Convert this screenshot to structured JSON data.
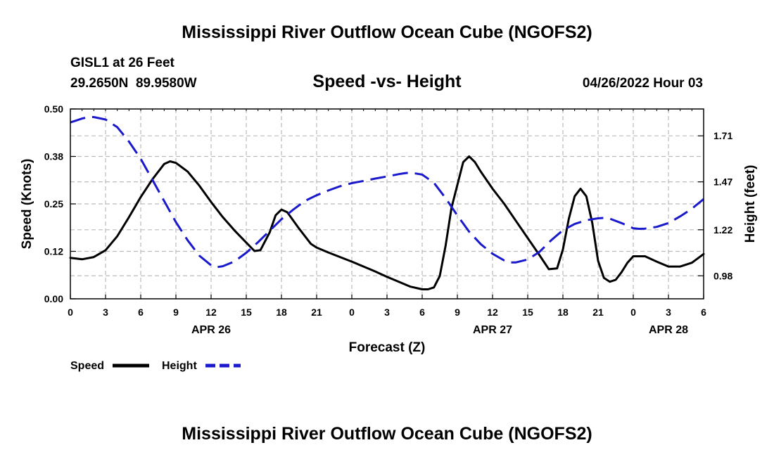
{
  "header": {
    "title": "Mississippi River Outflow Ocean Cube (NGOFS2)",
    "station": "GISL1 at 26 Feet",
    "coords": "29.2650N  89.9580W",
    "timestamp": "04/26/2022 Hour 03",
    "bottom_title": "Mississippi River Outflow Ocean Cube (NGOFS2)"
  },
  "legend": {
    "speed_label": "Speed",
    "height_label": "Height"
  },
  "colors": {
    "speed": "#000000",
    "height": "#1a1acc",
    "grid": "#bbbbbb"
  },
  "chart_data": {
    "type": "line",
    "title": "Speed -vs- Height",
    "xlabel": "Forecast (Z)",
    "ylabel": "Speed (Knots)",
    "y2label": "Height (feet)",
    "x_unit": "hours since 04/26/2022 00Z",
    "xlim": [
      0,
      54
    ],
    "ylim": [
      0,
      0.5
    ],
    "y2lim": [
      0.86,
      1.85
    ],
    "x_tick_values": [
      0,
      3,
      6,
      9,
      12,
      15,
      18,
      21,
      24,
      27,
      30,
      33,
      36,
      39,
      42,
      45,
      48,
      51,
      54
    ],
    "x_tick_labels": [
      "0",
      "3",
      "6",
      "9",
      "12",
      "15",
      "18",
      "21",
      "0",
      "3",
      "6",
      "9",
      "12",
      "15",
      "18",
      "21",
      "0",
      "3",
      "6"
    ],
    "y_tick_values": [
      0,
      0.125,
      0.25,
      0.375,
      0.5
    ],
    "y_tick_labels": [
      "0.00",
      "0.12",
      "0.25",
      "0.38",
      "0.50"
    ],
    "y2_tick_values": [
      0.98,
      1.22,
      1.47,
      1.71
    ],
    "y2_tick_labels": [
      "0.98",
      "1.22",
      "1.47",
      "1.71"
    ],
    "date_labels": [
      {
        "x": 12,
        "label": "APR 26"
      },
      {
        "x": 36,
        "label": "APR 27"
      },
      {
        "x": 51,
        "label": "APR 28"
      }
    ],
    "series": [
      {
        "name": "Speed",
        "axis": "left",
        "style": "solid",
        "points": [
          [
            0,
            0.108
          ],
          [
            1,
            0.104
          ],
          [
            2,
            0.11
          ],
          [
            3,
            0.128
          ],
          [
            4,
            0.165
          ],
          [
            5,
            0.215
          ],
          [
            6,
            0.268
          ],
          [
            7,
            0.315
          ],
          [
            8,
            0.355
          ],
          [
            8.5,
            0.362
          ],
          [
            9,
            0.358
          ],
          [
            10,
            0.335
          ],
          [
            11,
            0.298
          ],
          [
            12,
            0.255
          ],
          [
            13,
            0.215
          ],
          [
            14,
            0.18
          ],
          [
            15,
            0.148
          ],
          [
            15.7,
            0.126
          ],
          [
            16.2,
            0.128
          ],
          [
            17,
            0.175
          ],
          [
            17.5,
            0.22
          ],
          [
            18,
            0.235
          ],
          [
            18.5,
            0.228
          ],
          [
            19.5,
            0.185
          ],
          [
            20.5,
            0.145
          ],
          [
            21,
            0.135
          ],
          [
            22,
            0.122
          ],
          [
            23,
            0.11
          ],
          [
            24,
            0.098
          ],
          [
            25,
            0.085
          ],
          [
            26,
            0.072
          ],
          [
            27,
            0.058
          ],
          [
            28,
            0.045
          ],
          [
            29,
            0.032
          ],
          [
            30,
            0.025
          ],
          [
            30.5,
            0.025
          ],
          [
            31,
            0.03
          ],
          [
            31.5,
            0.06
          ],
          [
            32,
            0.14
          ],
          [
            32.5,
            0.24
          ],
          [
            33,
            0.3
          ],
          [
            33.5,
            0.36
          ],
          [
            34,
            0.375
          ],
          [
            34.5,
            0.36
          ],
          [
            35,
            0.335
          ],
          [
            36,
            0.29
          ],
          [
            37,
            0.25
          ],
          [
            38,
            0.205
          ],
          [
            39,
            0.16
          ],
          [
            40,
            0.115
          ],
          [
            40.8,
            0.078
          ],
          [
            41.5,
            0.08
          ],
          [
            42,
            0.13
          ],
          [
            42.5,
            0.21
          ],
          [
            43,
            0.27
          ],
          [
            43.5,
            0.29
          ],
          [
            44,
            0.27
          ],
          [
            44.5,
            0.2
          ],
          [
            45,
            0.1
          ],
          [
            45.5,
            0.055
          ],
          [
            46,
            0.045
          ],
          [
            46.5,
            0.05
          ],
          [
            47,
            0.07
          ],
          [
            47.5,
            0.095
          ],
          [
            48,
            0.112
          ],
          [
            49,
            0.112
          ],
          [
            50,
            0.098
          ],
          [
            51,
            0.085
          ],
          [
            52,
            0.085
          ],
          [
            53,
            0.095
          ],
          [
            54,
            0.118
          ]
        ]
      },
      {
        "name": "Height",
        "axis": "right",
        "style": "dashed",
        "points": [
          [
            0,
            1.78
          ],
          [
            0.5,
            1.79
          ],
          [
            1,
            1.8
          ],
          [
            1.5,
            1.807
          ],
          [
            2,
            1.808
          ],
          [
            3,
            1.795
          ],
          [
            4,
            1.755
          ],
          [
            5,
            1.68
          ],
          [
            6,
            1.59
          ],
          [
            7,
            1.48
          ],
          [
            8,
            1.37
          ],
          [
            9,
            1.26
          ],
          [
            10,
            1.165
          ],
          [
            11,
            1.085
          ],
          [
            12,
            1.035
          ],
          [
            12.5,
            1.025
          ],
          [
            13,
            1.03
          ],
          [
            14,
            1.055
          ],
          [
            15,
            1.1
          ],
          [
            16,
            1.155
          ],
          [
            17,
            1.215
          ],
          [
            18,
            1.275
          ],
          [
            19,
            1.325
          ],
          [
            20,
            1.37
          ],
          [
            21,
            1.4
          ],
          [
            22,
            1.425
          ],
          [
            23,
            1.447
          ],
          [
            24,
            1.463
          ],
          [
            25,
            1.475
          ],
          [
            26,
            1.487
          ],
          [
            27,
            1.498
          ],
          [
            28,
            1.51
          ],
          [
            28.5,
            1.515
          ],
          [
            29,
            1.518
          ],
          [
            30,
            1.508
          ],
          [
            31,
            1.465
          ],
          [
            32,
            1.385
          ],
          [
            33,
            1.295
          ],
          [
            34,
            1.21
          ],
          [
            35,
            1.145
          ],
          [
            36,
            1.095
          ],
          [
            37,
            1.06
          ],
          [
            37.5,
            1.05
          ],
          [
            38,
            1.05
          ],
          [
            39,
            1.065
          ],
          [
            40,
            1.105
          ],
          [
            41,
            1.165
          ],
          [
            42,
            1.218
          ],
          [
            43,
            1.25
          ],
          [
            44,
            1.27
          ],
          [
            45,
            1.28
          ],
          [
            45.5,
            1.282
          ],
          [
            46,
            1.278
          ],
          [
            47,
            1.255
          ],
          [
            48,
            1.228
          ],
          [
            48.5,
            1.225
          ],
          [
            49,
            1.226
          ],
          [
            50,
            1.235
          ],
          [
            51,
            1.255
          ],
          [
            52,
            1.29
          ],
          [
            53,
            1.33
          ],
          [
            54,
            1.38
          ]
        ]
      }
    ]
  }
}
